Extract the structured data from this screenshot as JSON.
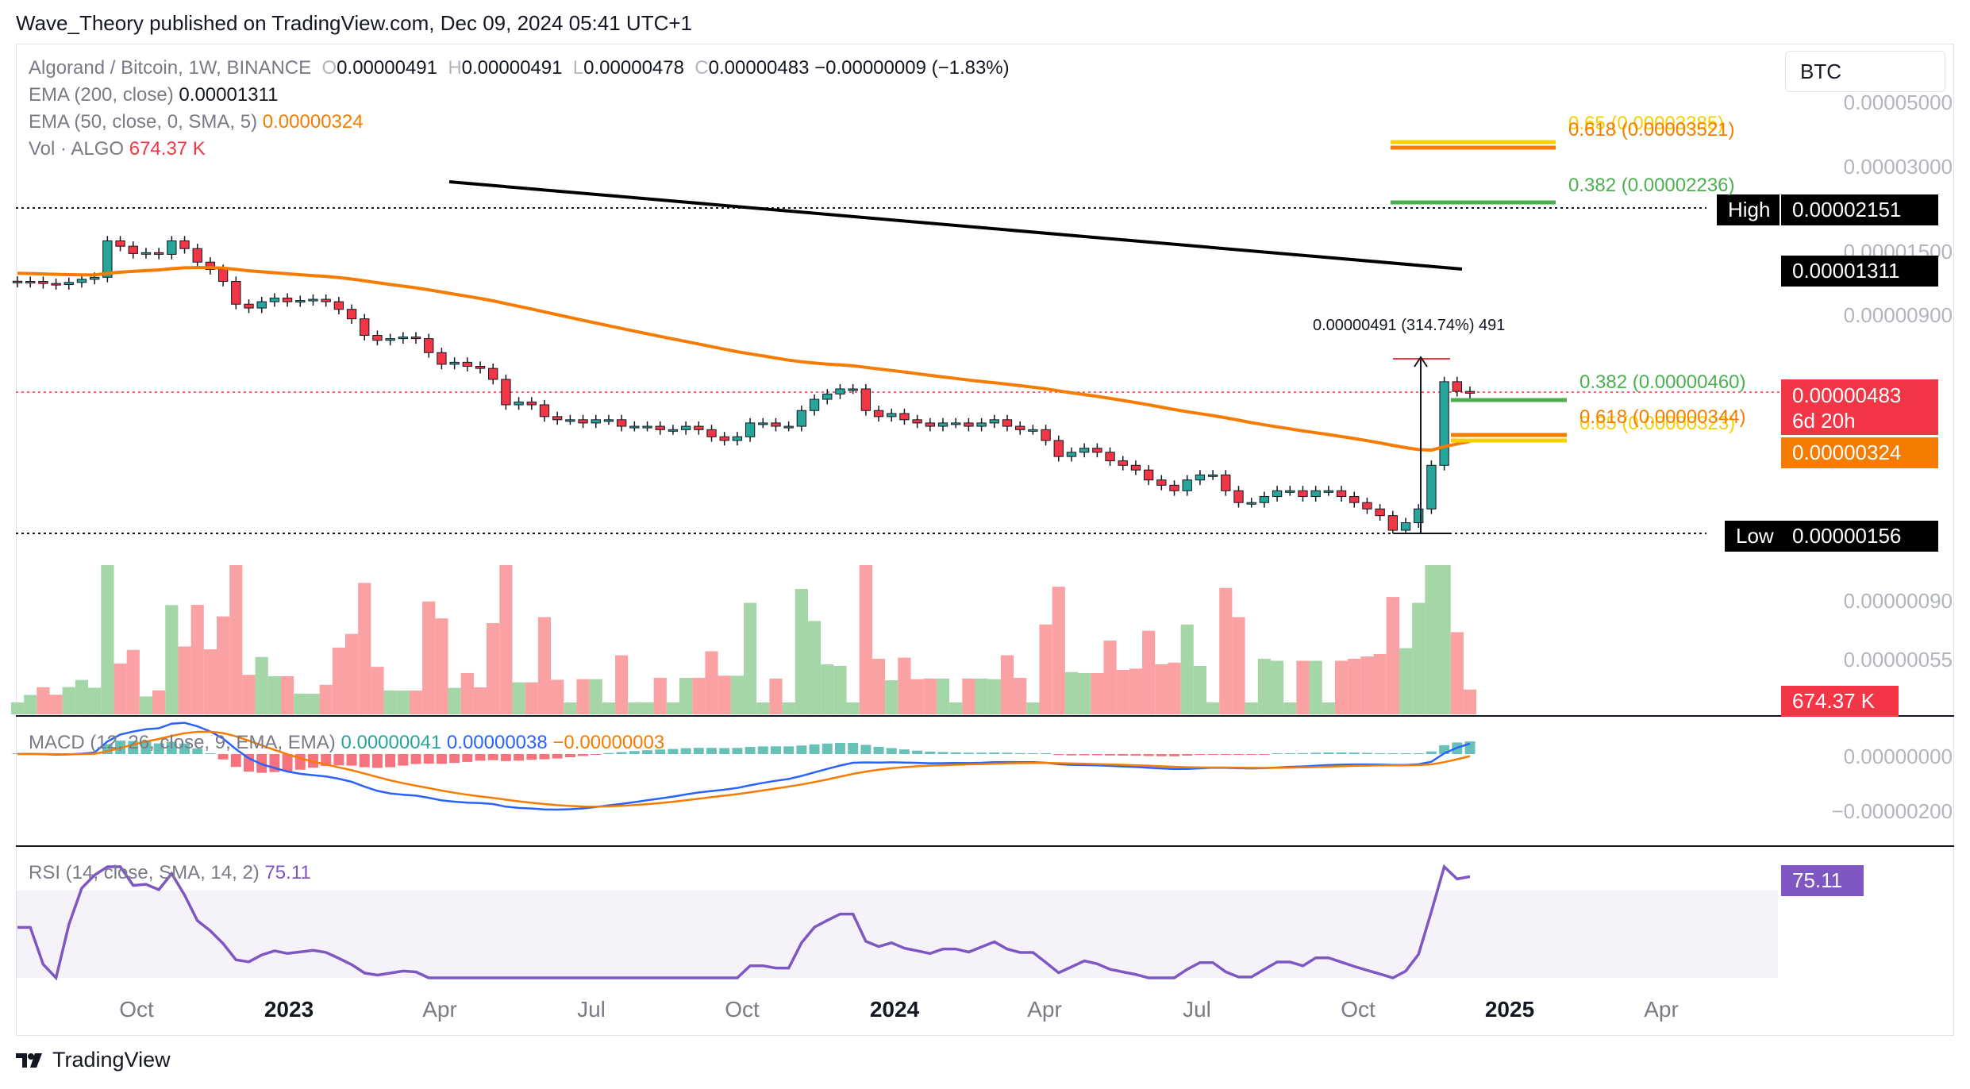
{
  "header": {
    "published": "Wave_Theory published on TradingView.com, Dec 09, 2024 05:41 UTC+1"
  },
  "legend": {
    "symbol": "Algorand / Bitcoin, 1W, BINANCE",
    "o_label": "O",
    "o": "0.00000491",
    "h_label": "H",
    "h": "0.00000491",
    "l_label": "L",
    "l": "0.00000478",
    "c_label": "C",
    "c": "0.00000483",
    "change": "−0.00000009 (−1.83%)",
    "ema200_label": "EMA (200, close)",
    "ema200": "0.00001311",
    "ema50_label": "EMA (50, close, 0, SMA, 5)",
    "ema50": "0.00000324",
    "vol_label": "Vol · ALGO",
    "vol": "674.37 K",
    "macd_label": "MACD (12, 26, close, 9, EMA, EMA)",
    "macd_v1": "0.00000041",
    "macd_v2": "0.00000038",
    "macd_v3": "−0.00000003",
    "rsi_label": "RSI (14, close, SMA, 14, 2)",
    "rsi": "75.11"
  },
  "currency_button": "BTC",
  "price_axis": {
    "labels": [
      "0.00005000",
      "0.00003000",
      "0.00001500",
      "0.00000900",
      "0.00000090",
      "0.00000055"
    ],
    "macd_labels": [
      "0.00000000",
      "−0.00000200"
    ]
  },
  "price_tags": {
    "high_label": "High",
    "high": "0.00002151",
    "ema200": "0.00001311",
    "last": "0.00000483",
    "countdown": "6d 20h",
    "ema50": "0.00000324",
    "low_label": "Low",
    "low": "0.00000156",
    "volume": "674.37 K",
    "rsi": "75.11"
  },
  "fib_labels": {
    "upper_65": "0.65 (0.00003385)",
    "upper_618": "0.618 (0.00003521)",
    "upper_382": "0.382 (0.00002236)",
    "lower_382": "0.382 (0.00000460)",
    "lower_618": "0.618 (0.00000344)",
    "lower_65": "0.65 (0.00000323)"
  },
  "measure_label": "0.00000491 (314.74%) 491",
  "time_axis": [
    {
      "text": "Oct",
      "bold": false
    },
    {
      "text": "2023",
      "bold": true
    },
    {
      "text": "Apr",
      "bold": false
    },
    {
      "text": "Jul",
      "bold": false
    },
    {
      "text": "Oct",
      "bold": false
    },
    {
      "text": "2024",
      "bold": true
    },
    {
      "text": "Apr",
      "bold": false
    },
    {
      "text": "Jul",
      "bold": false
    },
    {
      "text": "Oct",
      "bold": false
    },
    {
      "text": "2025",
      "bold": true
    },
    {
      "text": "Apr",
      "bold": false
    }
  ],
  "footer": {
    "brand": "TradingView"
  },
  "colors": {
    "up": "#26a69a",
    "down": "#f23645",
    "ema50": "#f57c00",
    "ema200": "#000000",
    "fib_green": "#4caf50",
    "fib_orange": "#f57c00",
    "fib_yellow": "#f5d000",
    "macd": "#2962ff",
    "signal": "#f57c00",
    "rsi": "#7e57c2",
    "vol_up": "#a5d6a7",
    "vol_down": "#faa1a4"
  },
  "chart_data": {
    "type": "candlestick",
    "symbol": "Algorand / Bitcoin",
    "interval": "1W",
    "y_scale": "log",
    "ylim": [
      1.5e-06,
      5e-05
    ],
    "high": 2.151e-05,
    "low": 1.56e-06,
    "last_close": 4.83e-06,
    "close_series": [
      1.18e-05,
      1.19e-05,
      1.17e-05,
      1.16e-05,
      1.18e-05,
      1.21e-05,
      1.23e-05,
      1.65e-05,
      1.58e-05,
      1.49e-05,
      1.5e-05,
      1.48e-05,
      1.65e-05,
      1.55e-05,
      1.39e-05,
      1.31e-05,
      1.19e-05,
      9.9e-06,
      9.6e-06,
      1.01e-05,
      1.04e-05,
      1.01e-05,
      1.02e-05,
      1.03e-05,
      1.01e-05,
      9.5e-06,
      8.8e-06,
      7.7e-06,
      7.4e-06,
      7.5e-06,
      7.6e-06,
      7.5e-06,
      6.7e-06,
      6.1e-06,
      6.2e-06,
      6e-06,
      5.9e-06,
      5.4e-06,
      4.4e-06,
      4.5e-06,
      4.4e-06,
      4e-06,
      3.9e-06,
      3.9e-06,
      3.8e-06,
      3.9e-06,
      3.9e-06,
      3.7e-06,
      3.7e-06,
      3.7e-06,
      3.6e-06,
      3.6e-06,
      3.7e-06,
      3.6e-06,
      3.4e-06,
      3.3e-06,
      3.4e-06,
      3.8e-06,
      3.8e-06,
      3.7e-06,
      3.7e-06,
      4.2e-06,
      4.6e-06,
      4.8e-06,
      5e-06,
      5e-06,
      4.2e-06,
      4e-06,
      4.1e-06,
      3.9e-06,
      3.8e-06,
      3.7e-06,
      3.8e-06,
      3.8e-06,
      3.7e-06,
      3.8e-06,
      3.9e-06,
      3.7e-06,
      3.6e-06,
      3.6e-06,
      3.3e-06,
      2.9e-06,
      3e-06,
      3.1e-06,
      3e-06,
      2.8e-06,
      2.7e-06,
      2.6e-06,
      2.4e-06,
      2.3e-06,
      2.2e-06,
      2.4e-06,
      2.5e-06,
      2.5e-06,
      2.2e-06,
      2e-06,
      2e-06,
      2.1e-06,
      2.2e-06,
      2.2e-06,
      2.1e-06,
      2.2e-06,
      2.2e-06,
      2.1e-06,
      2e-06,
      1.9e-06,
      1.8e-06,
      1.6e-06,
      1.7e-06,
      1.9e-06,
      2.7e-06,
      5.3e-06,
      4.9e-06,
      4.83e-06
    ],
    "ema50_last": 3.24e-06,
    "ema200_last": 1.311e-05,
    "fib_levels": [
      {
        "ratio": 0.382,
        "value": 2.236e-05
      },
      {
        "ratio": 0.618,
        "value": 3.521e-05
      },
      {
        "ratio": 0.65,
        "value": 3.385e-05
      },
      {
        "ratio": 0.382,
        "value": 4.6e-06
      },
      {
        "ratio": 0.618,
        "value": 3.44e-06
      },
      {
        "ratio": 0.65,
        "value": 3.23e-06
      }
    ],
    "volume_last": "674.37 K",
    "rsi_last": 75.11,
    "macd": {
      "macd": 4.1e-07,
      "signal": 3.8e-07,
      "hist": -3e-08
    },
    "x_ticks": [
      "Oct",
      "2023",
      "Apr",
      "Jul",
      "Oct",
      "2024",
      "Apr",
      "Jul",
      "Oct",
      "2025",
      "Apr"
    ]
  }
}
